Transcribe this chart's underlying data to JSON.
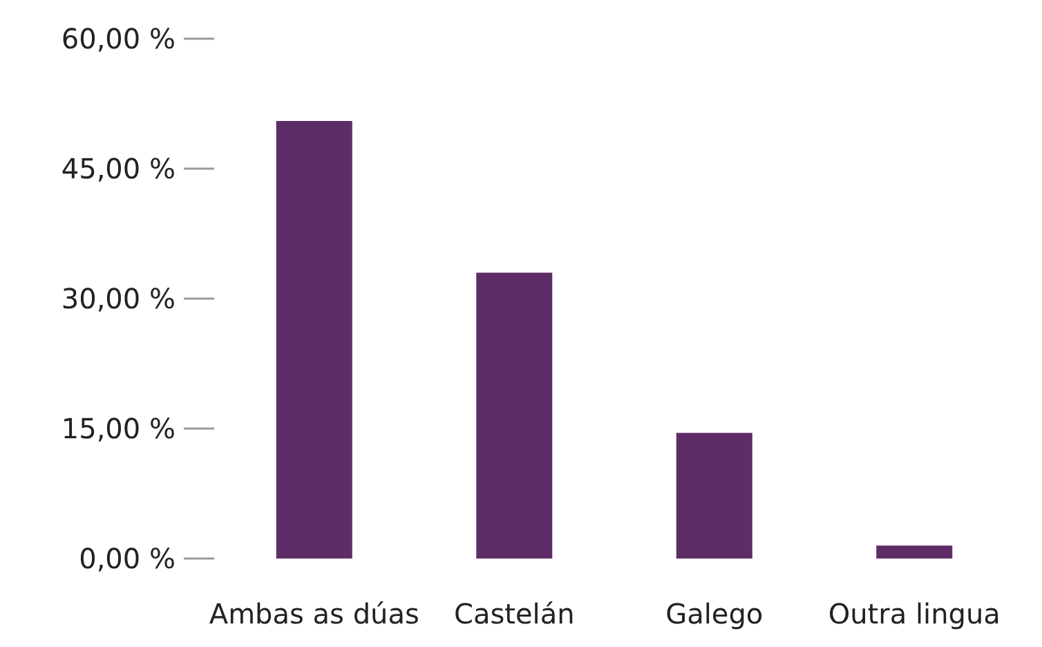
{
  "chart_data": {
    "type": "bar",
    "categories": [
      "Ambas as dúas",
      "Castelán",
      "Galego",
      "Outra lingua"
    ],
    "values": [
      50.5,
      33,
      14.5,
      1.5
    ],
    "color": "#5e2d67",
    "ylim": [
      0,
      60
    ],
    "yticks": [
      {
        "value": 0,
        "label": "0,00 %"
      },
      {
        "value": 15,
        "label": "15,00 %"
      },
      {
        "value": 30,
        "label": "30,00 %"
      },
      {
        "value": 45,
        "label": "45,00 %"
      },
      {
        "value": 60,
        "label": "60,00 %"
      }
    ],
    "grid": false
  }
}
